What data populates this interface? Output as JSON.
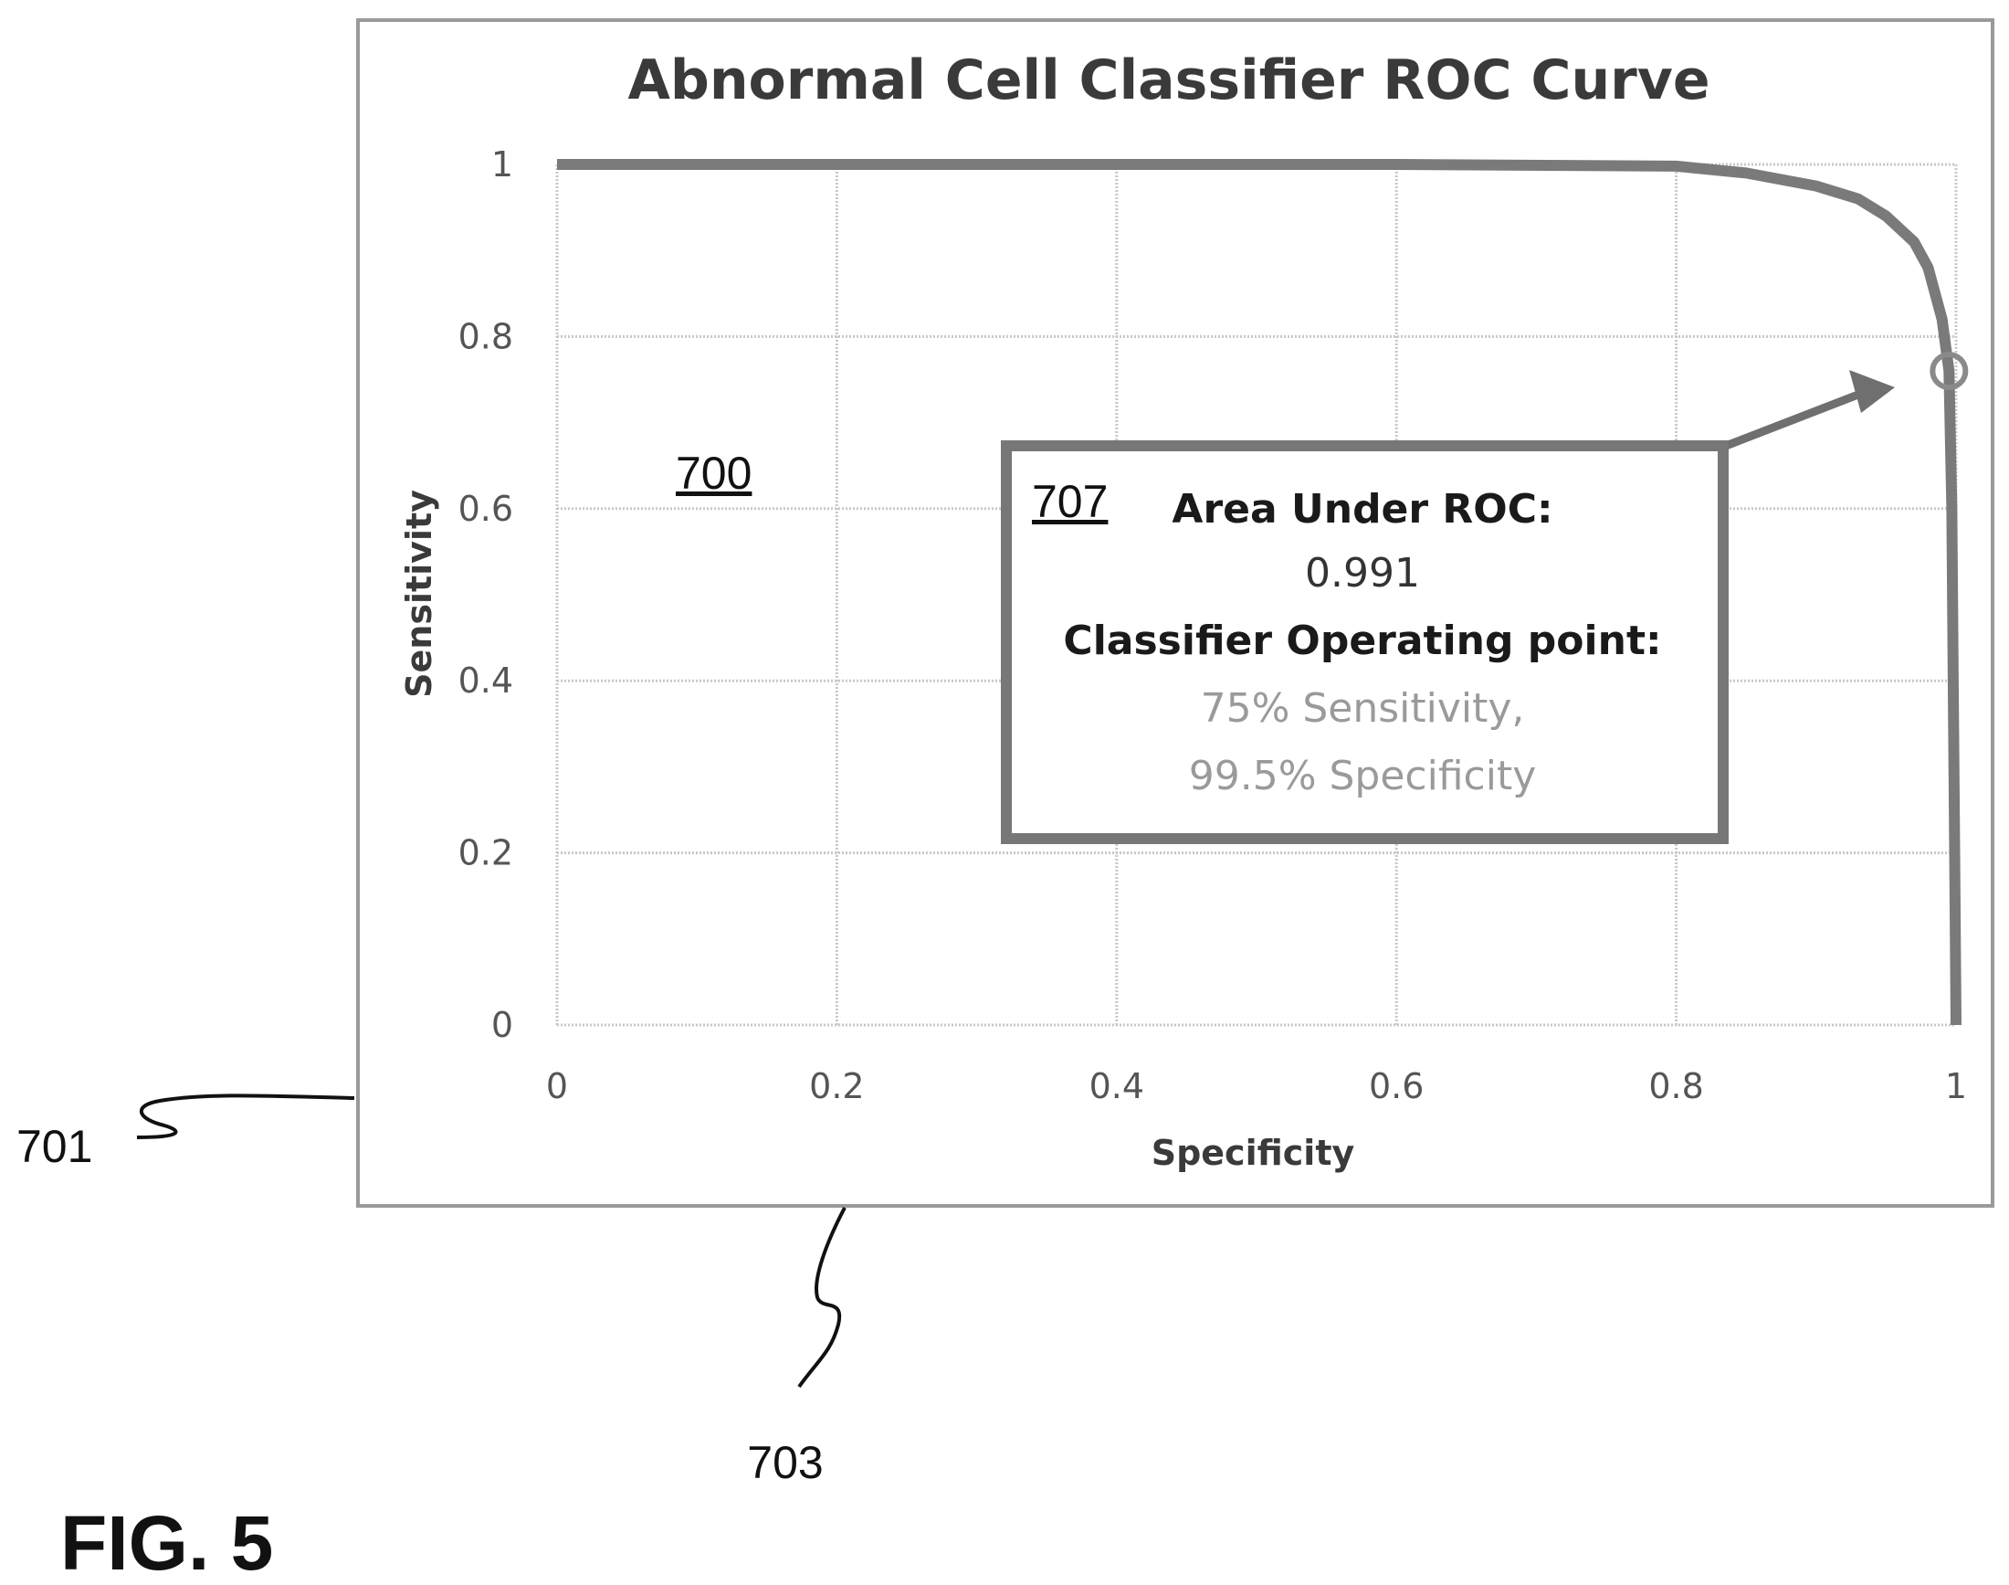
{
  "chart_data": {
    "type": "line",
    "title": "Abnormal Cell Classifier ROC Curve",
    "xlabel": "Specificity",
    "ylabel": "Sensitivity",
    "xlim": [
      0,
      1
    ],
    "ylim": [
      0,
      1
    ],
    "x_ticks": [
      "0",
      "0.2",
      "0.4",
      "0.6",
      "0.8",
      "1"
    ],
    "y_ticks": [
      "1",
      "0.8",
      "0.6",
      "0.4",
      "0.2",
      "0"
    ],
    "grid": true,
    "legend": "none",
    "series": [
      {
        "x": [
          0,
          0.2,
          0.4,
          0.6,
          0.8,
          0.85,
          0.9,
          0.93,
          0.95,
          0.97,
          0.98,
          0.99,
          0.995,
          0.997,
          0.998,
          0.999,
          1.0
        ],
        "y": [
          1,
          1,
          1,
          1,
          0.998,
          0.99,
          0.975,
          0.96,
          0.94,
          0.91,
          0.88,
          0.82,
          0.76,
          0.6,
          0.4,
          0.2,
          0
        ]
      }
    ],
    "operating_point": {
      "x": 0.995,
      "y": 0.76
    },
    "annotation": {
      "ref": "707",
      "line1": "Area Under ROC:",
      "line2": "0.991",
      "line3": "Classifier Operating point:",
      "line4": "75% Sensitivity,",
      "line5": "99.5% Specificity"
    }
  },
  "refs": {
    "plot_ref": "700",
    "frame_ref": "701",
    "axis_ref": "703"
  },
  "figure_label": "FIG. 5",
  "colors": {
    "curve": "#7a7a7a",
    "grid": "#c8c8c8",
    "frame": "#999999",
    "box": "#777777"
  }
}
